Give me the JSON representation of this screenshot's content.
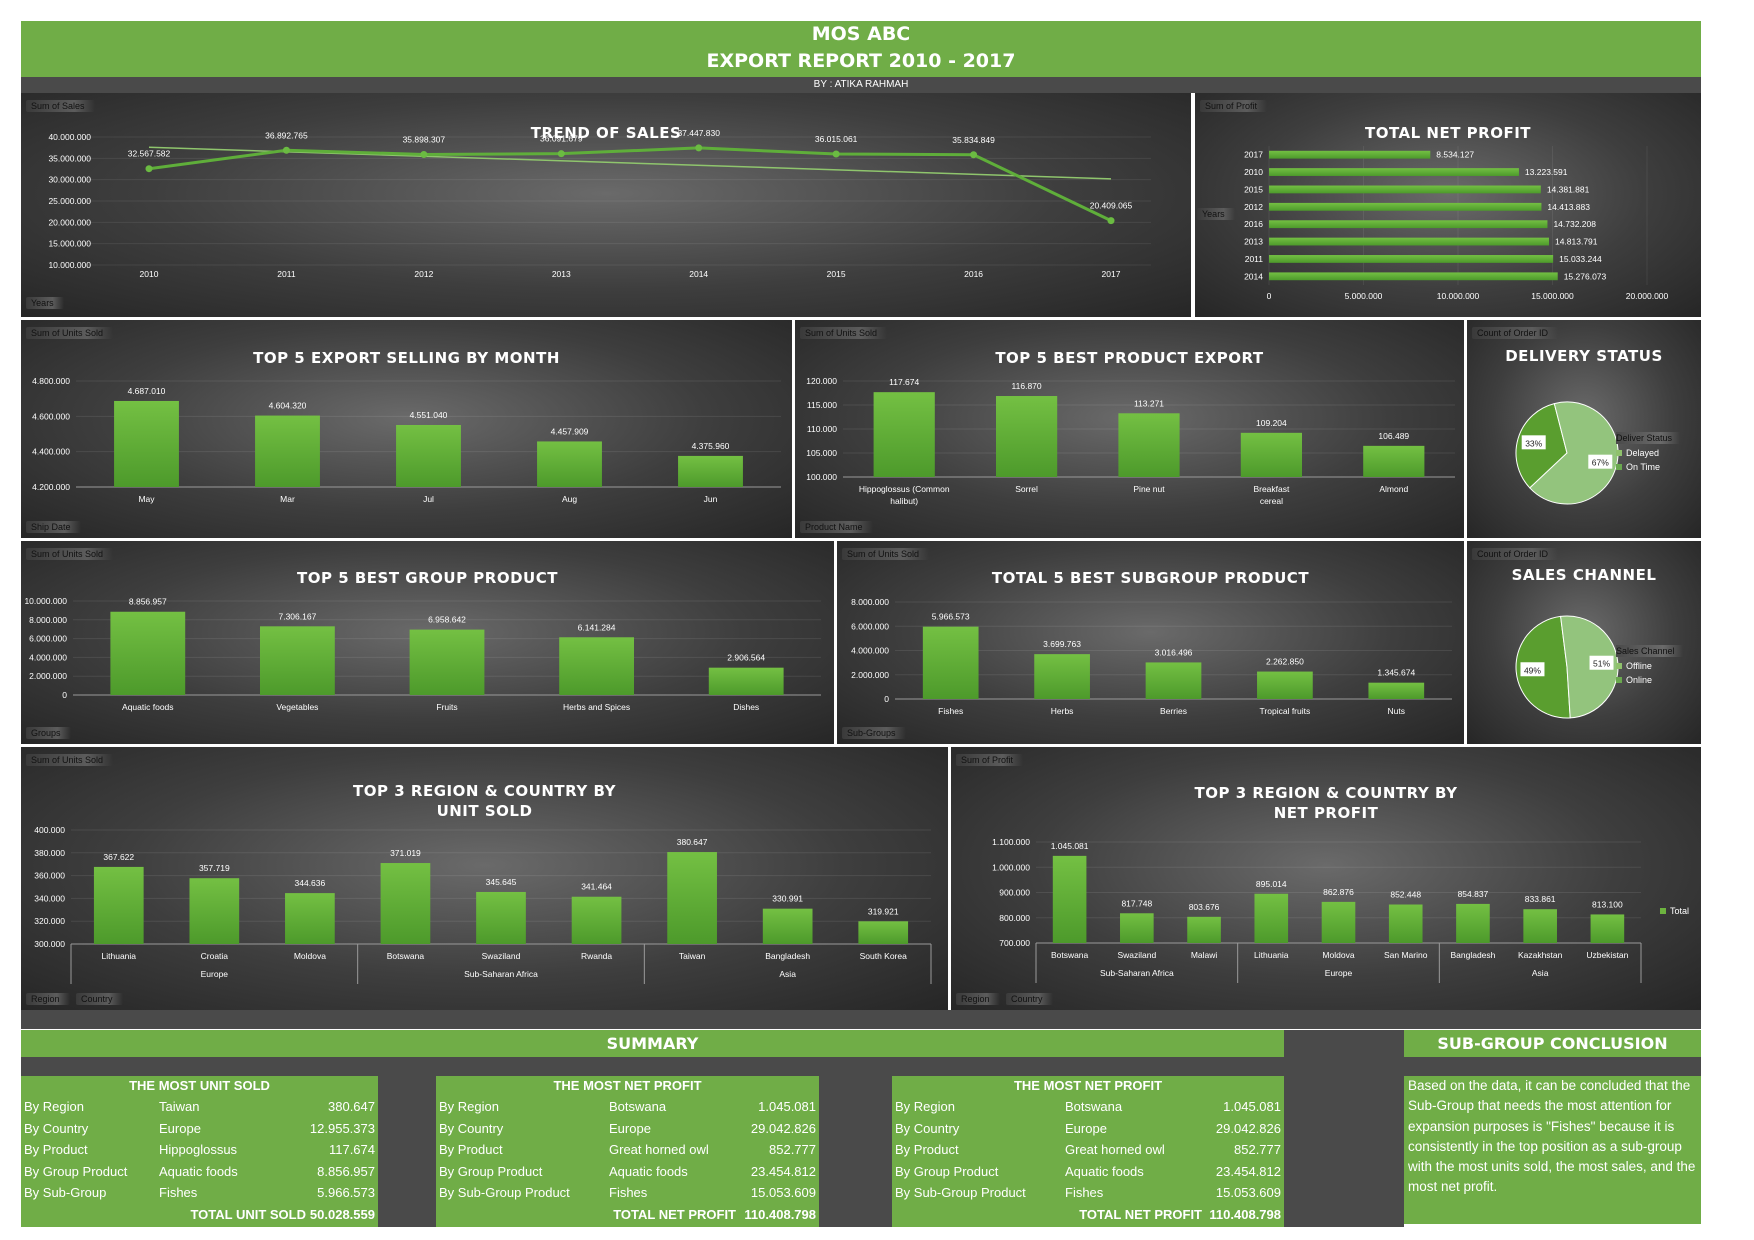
{
  "header": {
    "company": "MOS ABC",
    "title": "EXPORT REPORT 2010 - 2017",
    "byline": "BY : ATIKA RAHMAH"
  },
  "colors": {
    "accent": "#70ad47",
    "bar": "#6db33f",
    "bar_dark": "#4e9a2c",
    "pie_light": "#93c47d",
    "pie_dark": "#5a9e2f",
    "trend_line": "#8fc56d"
  },
  "chart_data": [
    {
      "id": "trend",
      "type": "line",
      "title": "TREND OF SALES",
      "value_tag": "Sum of Sales",
      "axis_tag": "Years",
      "categories": [
        "2010",
        "2011",
        "2012",
        "2013",
        "2014",
        "2015",
        "2016",
        "2017"
      ],
      "values": [
        32567582,
        36892765,
        35898307,
        36091679,
        37447830,
        36015061,
        35834849,
        20409065
      ],
      "labels": [
        "32.567.582",
        "36.892.765",
        "35.898.307",
        "36.091.679",
        "37.447.830",
        "36.015.061",
        "35.834.849",
        "20.409.065"
      ],
      "ylim": [
        10000000,
        40000000
      ],
      "yticks": [
        "10.000.000",
        "15.000.000",
        "20.000.000",
        "25.000.000",
        "30.000.000",
        "35.000.000",
        "40.000.000"
      ],
      "trendline": true
    },
    {
      "id": "netprofit",
      "type": "bar",
      "orientation": "horizontal",
      "title": "TOTAL NET PROFIT",
      "value_tag": "Sum of Profit",
      "axis_tag": "Years",
      "categories": [
        "2017",
        "2010",
        "2015",
        "2012",
        "2016",
        "2013",
        "2011",
        "2014"
      ],
      "values": [
        8534127,
        13223591,
        14381881,
        14413883,
        14732208,
        14813791,
        15033244,
        15276073
      ],
      "labels": [
        "8.534.127",
        "13.223.591",
        "14.381.881",
        "14.413.883",
        "14.732.208",
        "14.813.791",
        "15.033.244",
        "15.276.073"
      ],
      "xlim": [
        0,
        20000000
      ],
      "xticks": [
        "0",
        "5.000.000",
        "10.000.000",
        "15.000.000",
        "20.000.000"
      ]
    },
    {
      "id": "month",
      "type": "bar",
      "title": "TOP 5 EXPORT SELLING BY MONTH",
      "value_tag": "Sum of Units Sold",
      "axis_tag": "Ship Date",
      "categories": [
        "May",
        "Mar",
        "Jul",
        "Aug",
        "Jun"
      ],
      "values": [
        4687010,
        4604320,
        4551040,
        4457909,
        4375960
      ],
      "labels": [
        "4.687.010",
        "4.604.320",
        "4.551.040",
        "4.457.909",
        "4.375.960"
      ],
      "ylim": [
        4200000,
        4800000
      ],
      "yticks": [
        "4.200.000",
        "4.400.000",
        "4.600.000",
        "4.800.000"
      ]
    },
    {
      "id": "product",
      "type": "bar",
      "title": "TOP 5 BEST PRODUCT EXPORT",
      "value_tag": "Sum of Units Sold",
      "axis_tag": "Product Name",
      "categories": [
        "Hippoglossus (Common halibut)",
        "Sorrel",
        "Pine nut",
        "Breakfast cereal",
        "Almond"
      ],
      "values": [
        117674,
        116870,
        113271,
        109204,
        106489
      ],
      "labels": [
        "117.674",
        "116.870",
        "113.271",
        "109.204",
        "106.489"
      ],
      "ylim": [
        100000,
        120000
      ],
      "yticks": [
        "100.000",
        "105.000",
        "110.000",
        "115.000",
        "120.000"
      ]
    },
    {
      "id": "delivery",
      "type": "pie",
      "title": "DELIVERY STATUS",
      "value_tag": "Count of Order ID",
      "legend_title": "Deliver Status",
      "categories": [
        "Delayed",
        "On Time"
      ],
      "values": [
        33,
        67
      ],
      "labels": [
        "33%",
        "67%"
      ]
    },
    {
      "id": "group",
      "type": "bar",
      "title": "TOP 5 BEST GROUP PRODUCT",
      "value_tag": "Sum of Units Sold",
      "axis_tag": "Groups",
      "categories": [
        "Aquatic foods",
        "Vegetables",
        "Fruits",
        "Herbs and Spices",
        "Dishes"
      ],
      "values": [
        8856957,
        7306167,
        6958642,
        6141284,
        2906564
      ],
      "labels": [
        "8.856.957",
        "7.306.167",
        "6.958.642",
        "6.141.284",
        "2.906.564"
      ],
      "ylim": [
        0,
        10000000
      ],
      "yticks": [
        "0",
        "2.000.000",
        "4.000.000",
        "6.000.000",
        "8.000.000",
        "10.000.000"
      ]
    },
    {
      "id": "subgroup",
      "type": "bar",
      "title": "TOTAL 5 BEST SUBGROUP PRODUCT",
      "value_tag": "Sum of Units Sold",
      "axis_tag": "Sub-Groups",
      "categories": [
        "Fishes",
        "Herbs",
        "Berries",
        "Tropical fruits",
        "Nuts"
      ],
      "values": [
        5966573,
        3699763,
        3016496,
        2262850,
        1345674
      ],
      "labels": [
        "5.966.573",
        "3.699.763",
        "3.016.496",
        "2.262.850",
        "1.345.674"
      ],
      "ylim": [
        0,
        8000000
      ],
      "yticks": [
        "0",
        "2.000.000",
        "4.000.000",
        "6.000.000",
        "8.000.000"
      ]
    },
    {
      "id": "channel",
      "type": "pie",
      "title": "SALES CHANNEL",
      "value_tag": "Count of Order ID",
      "legend_title": "Sales Channel",
      "categories": [
        "Offline",
        "Online"
      ],
      "values": [
        49,
        51
      ],
      "labels": [
        "49%",
        "51%"
      ]
    },
    {
      "id": "region_units",
      "type": "bar",
      "title": "TOP 3 REGION & COUNTRY BY UNIT SOLD",
      "title_lines": [
        "TOP 3 REGION & COUNTRY BY",
        "UNIT SOLD"
      ],
      "value_tag": "Sum of Units Sold",
      "axis_tags": [
        "Region",
        "Country"
      ],
      "categories": [
        "Lithuania",
        "Croatia",
        "Moldova",
        "Botswana",
        "Swaziland",
        "Rwanda",
        "Taiwan",
        "Bangladesh",
        "South Korea"
      ],
      "groups": [
        "Europe",
        "Sub-Saharan Africa",
        "Asia"
      ],
      "values": [
        367622,
        357719,
        344636,
        371019,
        345645,
        341464,
        380647,
        330991,
        319921
      ],
      "labels": [
        "367.622",
        "357.719",
        "344.636",
        "371.019",
        "345.645",
        "341.464",
        "380.647",
        "330.991",
        "319.921"
      ],
      "ylim": [
        300000,
        400000
      ],
      "yticks": [
        "300.000",
        "320.000",
        "340.000",
        "360.000",
        "380.000",
        "400.000"
      ]
    },
    {
      "id": "region_profit",
      "type": "bar",
      "title": "TOP 3 REGION & COUNTRY BY NET PROFIT",
      "title_lines": [
        "TOP 3 REGION & COUNTRY BY",
        "NET PROFIT"
      ],
      "value_tag": "Sum of Profit",
      "axis_tags": [
        "Region",
        "Country"
      ],
      "legend": "Total",
      "categories": [
        "Botswana",
        "Swaziland",
        "Malawi",
        "Lithuania",
        "Moldova",
        "San Marino",
        "Bangladesh",
        "Kazakhstan",
        "Uzbekistan"
      ],
      "groups": [
        "Sub-Saharan Africa",
        "Europe",
        "Asia"
      ],
      "values": [
        1045081,
        817748,
        803676,
        895014,
        862876,
        852448,
        854837,
        833861,
        813100
      ],
      "labels": [
        "1.045.081",
        "817.748",
        "803.676",
        "895.014",
        "862.876",
        "852.448",
        "854.837",
        "833.861",
        "813.100"
      ],
      "ylim": [
        700000,
        1100000
      ],
      "yticks": [
        "700.000",
        "800.000",
        "900.000",
        "1.000.000",
        "1.100.000"
      ]
    }
  ],
  "summary": {
    "title": "SUMMARY",
    "tables": [
      {
        "heading": "THE MOST UNIT SOLD",
        "rows": [
          [
            "By Region",
            "Taiwan",
            "380.647"
          ],
          [
            "By Country",
            "Europe",
            "12.955.373"
          ],
          [
            "By Product",
            "Hippoglossus",
            "117.674"
          ],
          [
            "By Group Product",
            "Aquatic foods",
            "8.856.957"
          ],
          [
            "By Sub-Group",
            "Fishes",
            "5.966.573"
          ]
        ],
        "total_label": "TOTAL UNIT SOLD",
        "total_value": "50.028.559"
      },
      {
        "heading": "THE MOST NET PROFIT",
        "rows": [
          [
            "By Region",
            "Botswana",
            "1.045.081"
          ],
          [
            "By Country",
            "Europe",
            "29.042.826"
          ],
          [
            "By Product",
            "Great horned owl",
            "852.777"
          ],
          [
            "By Group Product",
            "Aquatic foods",
            "23.454.812"
          ],
          [
            "By Sub-Group Product",
            "Fishes",
            "15.053.609"
          ]
        ],
        "total_label": "TOTAL NET PROFIT",
        "total_value": "110.408.798"
      },
      {
        "heading": "THE MOST NET PROFIT",
        "rows": [
          [
            "By Region",
            "Botswana",
            "1.045.081"
          ],
          [
            "By Country",
            "Europe",
            "29.042.826"
          ],
          [
            "By Product",
            "Great horned owl",
            "852.777"
          ],
          [
            "By Group Product",
            "Aquatic foods",
            "23.454.812"
          ],
          [
            "By Sub-Group Product",
            "Fishes",
            "15.053.609"
          ]
        ],
        "total_label": "TOTAL NET PROFIT",
        "total_value": "110.408.798"
      }
    ]
  },
  "conclusion": {
    "title": "SUB-GROUP CONCLUSION",
    "text": "Based on the data, it can be concluded that the Sub-Group that needs the most attention for expansion purposes is \"Fishes\" because it is consistently in the top position as a sub-group with the most units sold, the most sales, and the most net profit."
  }
}
